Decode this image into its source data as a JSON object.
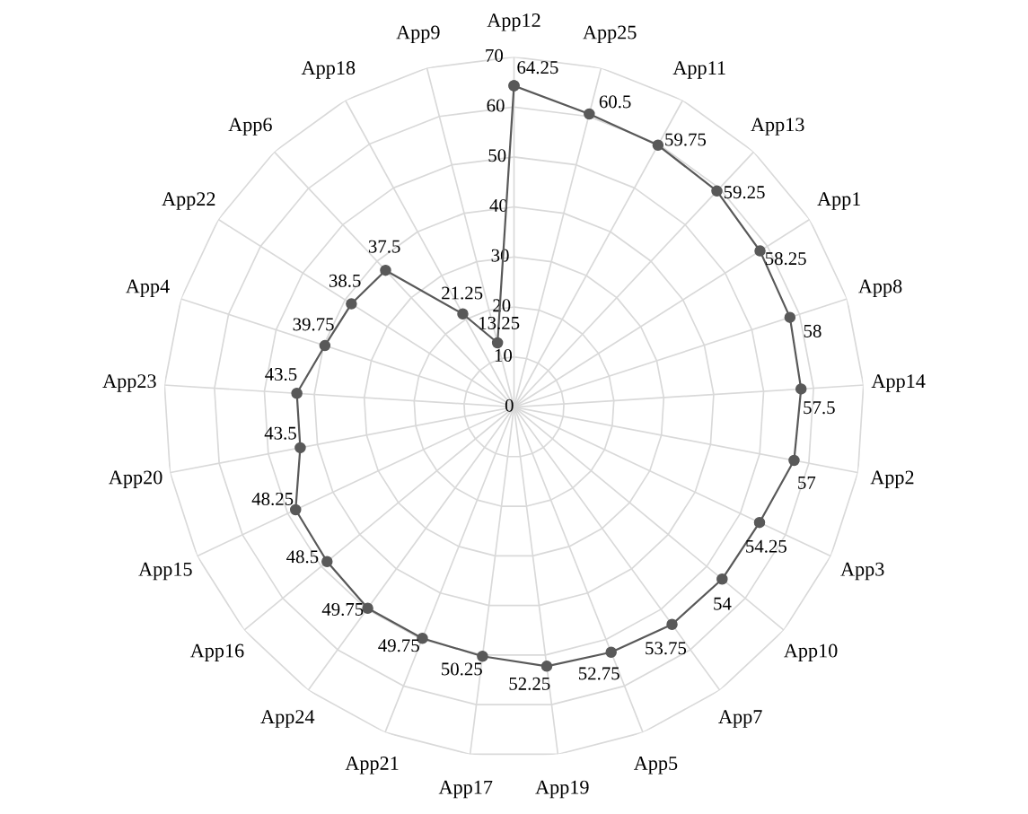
{
  "chart_data": {
    "type": "radar",
    "categories": [
      "App12",
      "App25",
      "App11",
      "App13",
      "App1",
      "App8",
      "App14",
      "App2",
      "App3",
      "App10",
      "App7",
      "App5",
      "App19",
      "App17",
      "App21",
      "App24",
      "App16",
      "App15",
      "App20",
      "App23",
      "App4",
      "App22",
      "App6",
      "App18",
      "App9"
    ],
    "series": [
      {
        "color": "#595959",
        "values": [
          64.25,
          60.5,
          59.75,
          59.25,
          58.25,
          58,
          57.5,
          57,
          54.25,
          54,
          53.75,
          52.75,
          52.25,
          50.25,
          49.75,
          49.75,
          48.5,
          48.25,
          43.5,
          43.5,
          39.75,
          38.5,
          37.5,
          21.25,
          13.25
        ]
      }
    ],
    "ylim": [
      0,
      70
    ],
    "yticks": [
      0,
      10,
      20,
      30,
      40,
      50,
      60,
      70
    ],
    "grid": true,
    "marker": "circle",
    "line_style": "solid",
    "data_labels": true
  }
}
